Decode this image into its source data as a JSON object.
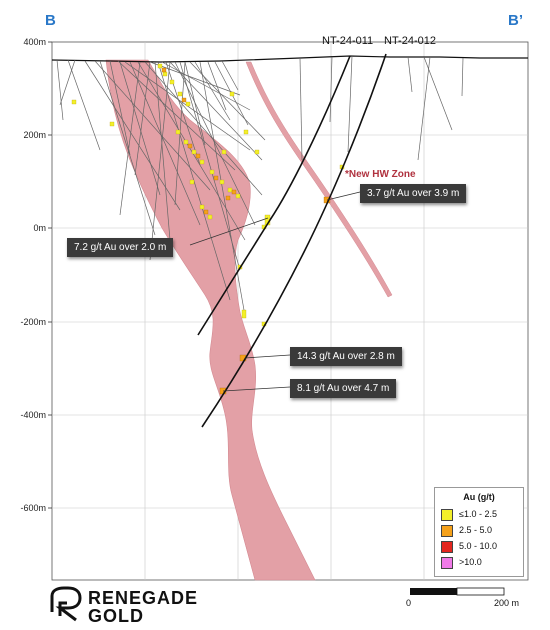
{
  "section": {
    "left_label": "B",
    "right_label": "B’"
  },
  "y_axis": {
    "ticks": [
      "400m",
      "200m",
      "0m",
      "-200m",
      "-400m",
      "-600m"
    ]
  },
  "drill_holes": [
    {
      "name": "NT-24-011"
    },
    {
      "name": "NT-24-012"
    }
  ],
  "callouts": {
    "new_zone_label": "*New HW Zone",
    "c1": "3.7 g/t Au over 3.9 m",
    "c2": "7.2 g/t Au over 2.0 m",
    "c3": "14.3 g/t Au over 2.8 m",
    "c4": "8.1 g/t Au over 4.7 m"
  },
  "legend": {
    "title": "Au (g/t)",
    "items": [
      {
        "label": "≤1.0 - 2.5",
        "color": "#f3ef2a"
      },
      {
        "label": "2.5 - 5.0",
        "color": "#f5a11a"
      },
      {
        "label": "5.0 - 10.0",
        "color": "#e3261f"
      },
      {
        "label": ">10.0",
        "color": "#f07ae8"
      }
    ]
  },
  "scale_bar": {
    "start": "0",
    "end": "200 m"
  },
  "logo": {
    "line1": "RENEGADE",
    "line2": "GOLD"
  },
  "colors": {
    "zone_fill": "#e3a0a6",
    "axis_label": "#2a78c8",
    "callout_bg": "#3a3a3a",
    "new_zone_text": "#b0323f"
  }
}
